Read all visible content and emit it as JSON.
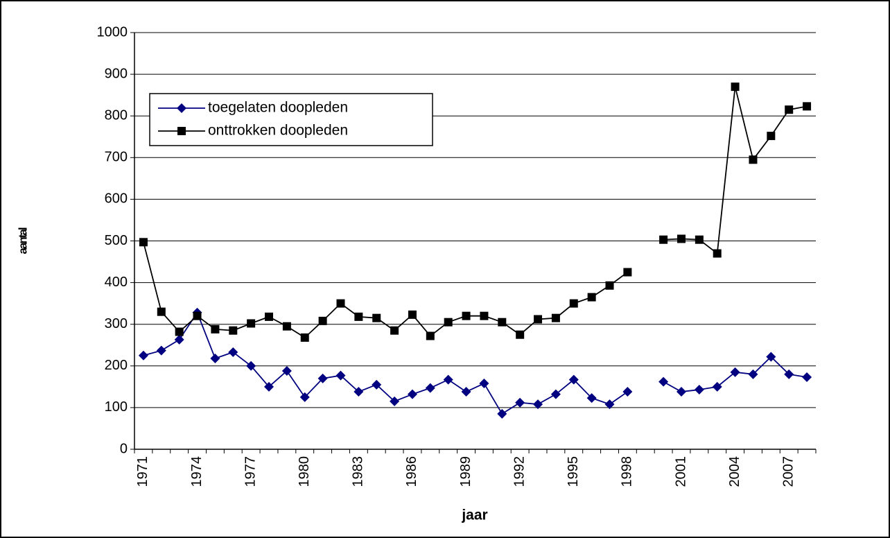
{
  "chart_data": {
    "type": "line",
    "x_label": "jaar",
    "y_label": "aantal",
    "categories": [
      "1971",
      null,
      null,
      "1974",
      null,
      null,
      "1977",
      null,
      null,
      "1980",
      null,
      null,
      "1983",
      null,
      null,
      "1986",
      null,
      null,
      "1989",
      null,
      null,
      "1992",
      null,
      null,
      "1995",
      null,
      null,
      "1998",
      null,
      null,
      "2001",
      null,
      null,
      "2004",
      null,
      null,
      "2007",
      null
    ],
    "series": [
      {
        "name": "toegelaten doopleden",
        "color": "#000080",
        "marker": "diamond",
        "values": [
          225,
          237,
          263,
          328,
          218,
          233,
          200,
          150,
          188,
          125,
          170,
          177,
          138,
          155,
          115,
          132,
          147,
          167,
          138,
          158,
          85,
          112,
          108,
          132,
          167,
          123,
          108,
          138,
          null,
          162,
          138,
          143,
          150,
          185,
          180,
          222,
          180,
          173
        ]
      },
      {
        "name": "onttrokken doopleden",
        "color": "#000000",
        "marker": "square",
        "values": [
          497,
          330,
          282,
          320,
          288,
          285,
          302,
          318,
          295,
          268,
          308,
          350,
          318,
          315,
          285,
          323,
          272,
          305,
          320,
          320,
          305,
          275,
          312,
          315,
          350,
          365,
          393,
          425,
          null,
          503,
          505,
          503,
          470,
          870,
          695,
          752,
          815,
          823
        ]
      }
    ],
    "ylim": [
      0,
      1000
    ],
    "yticks": [
      0,
      100,
      200,
      300,
      400,
      500,
      600,
      700,
      800,
      900,
      1000
    ],
    "grid": true,
    "legend": "upper left"
  }
}
